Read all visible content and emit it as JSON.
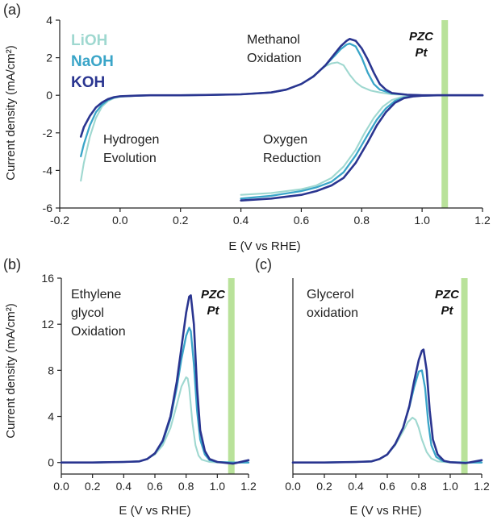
{
  "colors": {
    "LiOH": "#9fd8d0",
    "NaOH": "#3aa5c8",
    "KOH": "#2a3590",
    "pzc": "#b9e29a",
    "axis": "#222222"
  },
  "chart_data": [
    {
      "type": "line",
      "panel_label": "(a)",
      "xlabel": "E (V vs RHE)",
      "ylabel": "Current density (mA/cm²)",
      "xlim": [
        -0.2,
        1.2
      ],
      "ylim": [
        -6,
        4
      ],
      "xticks": [
        -0.2,
        0.0,
        0.2,
        0.4,
        0.6,
        0.8,
        1.0,
        1.2
      ],
      "xtick_labels": [
        "-0.2",
        "0.0",
        "0.2",
        "0.4",
        "0.6",
        "0.8",
        "1.0",
        "1.2"
      ],
      "yticks": [
        -6,
        -4,
        -2,
        0,
        2,
        4
      ],
      "ytick_labels": [
        "-6",
        "-4",
        "-2",
        "0",
        "2",
        "4"
      ],
      "grid": false,
      "legend_placement": "top-left",
      "legend": [
        "LiOH",
        "NaOH",
        "KOH"
      ],
      "annotations": [
        {
          "text": "Methanol",
          "x": 0.52,
          "y": 2.7
        },
        {
          "text": "Oxidation",
          "x": 0.52,
          "y": 1.85
        },
        {
          "text": "Hydrogen",
          "x": -0.08,
          "y": -2.25
        },
        {
          "text": "Evolution",
          "x": -0.08,
          "y": -3.1
        },
        {
          "text": "Oxygen",
          "x": 0.5,
          "y": -2.25
        },
        {
          "text": "Reduction",
          "x": 0.5,
          "y": -3.1
        }
      ],
      "pzc": {
        "x": 1.075,
        "label_line1": "PZC",
        "label_line2": "Pt"
      },
      "series": [
        {
          "name": "LiOH",
          "segments": [
            {
              "x": [
                -0.13,
                -0.12,
                -0.1,
                -0.08,
                -0.06,
                -0.04,
                -0.02,
                0.0,
                0.05,
                0.1,
                0.2,
                0.3,
                0.4,
                0.5,
                0.55,
                0.6,
                0.63,
                0.66,
                0.68,
                0.7,
                0.72,
                0.74,
                0.76,
                0.78,
                0.8,
                0.83,
                0.86,
                0.9,
                0.95,
                1.0,
                1.1,
                1.2
              ],
              "y": [
                -4.55,
                -3.6,
                -2.2,
                -1.2,
                -0.6,
                -0.3,
                -0.15,
                -0.08,
                -0.03,
                0,
                0,
                0.02,
                0.05,
                0.15,
                0.3,
                0.6,
                0.9,
                1.3,
                1.55,
                1.7,
                1.75,
                1.6,
                1.1,
                0.7,
                0.45,
                0.25,
                0.15,
                0.05,
                0.02,
                0,
                0,
                0
              ]
            },
            {
              "x": [
                0.4,
                0.5,
                0.6,
                0.65,
                0.7,
                0.74,
                0.78,
                0.81,
                0.84,
                0.87,
                0.9,
                0.93,
                0.96,
                1.0,
                1.05,
                1.1,
                1.2
              ],
              "y": [
                -5.3,
                -5.2,
                -5.0,
                -4.8,
                -4.4,
                -3.8,
                -2.9,
                -2.0,
                -1.2,
                -0.6,
                -0.25,
                -0.1,
                -0.04,
                -0.01,
                0,
                0,
                0
              ]
            }
          ]
        },
        {
          "name": "NaOH",
          "segments": [
            {
              "x": [
                -0.13,
                -0.12,
                -0.1,
                -0.08,
                -0.06,
                -0.04,
                -0.02,
                0.0,
                0.05,
                0.1,
                0.2,
                0.3,
                0.4,
                0.5,
                0.55,
                0.6,
                0.64,
                0.68,
                0.71,
                0.73,
                0.75,
                0.76,
                0.78,
                0.8,
                0.82,
                0.84,
                0.86,
                0.9,
                0.95,
                1.0,
                1.1,
                1.2
              ],
              "y": [
                -3.25,
                -2.6,
                -1.6,
                -0.9,
                -0.5,
                -0.25,
                -0.12,
                -0.06,
                -0.02,
                0,
                0,
                0.02,
                0.05,
                0.15,
                0.3,
                0.6,
                1.0,
                1.6,
                2.1,
                2.45,
                2.7,
                2.75,
                2.6,
                2.0,
                1.2,
                0.6,
                0.3,
                0.1,
                0.03,
                0,
                0,
                0
              ]
            },
            {
              "x": [
                0.4,
                0.5,
                0.6,
                0.65,
                0.7,
                0.74,
                0.78,
                0.82,
                0.85,
                0.88,
                0.91,
                0.94,
                0.97,
                1.0,
                1.05,
                1.1,
                1.2
              ],
              "y": [
                -5.5,
                -5.35,
                -5.1,
                -4.9,
                -4.6,
                -4.1,
                -3.2,
                -2.1,
                -1.3,
                -0.7,
                -0.3,
                -0.12,
                -0.05,
                -0.02,
                0,
                0,
                0
              ]
            }
          ]
        },
        {
          "name": "KOH",
          "segments": [
            {
              "x": [
                -0.13,
                -0.12,
                -0.1,
                -0.08,
                -0.06,
                -0.04,
                -0.02,
                0.0,
                0.05,
                0.1,
                0.2,
                0.3,
                0.4,
                0.5,
                0.55,
                0.6,
                0.64,
                0.68,
                0.71,
                0.73,
                0.75,
                0.76,
                0.78,
                0.8,
                0.82,
                0.84,
                0.86,
                0.88,
                0.9,
                0.95,
                1.0,
                1.1,
                1.2
              ],
              "y": [
                -2.2,
                -1.7,
                -1.1,
                -0.65,
                -0.38,
                -0.2,
                -0.1,
                -0.05,
                -0.02,
                0,
                0,
                0.02,
                0.05,
                0.15,
                0.3,
                0.6,
                1.0,
                1.6,
                2.2,
                2.6,
                2.9,
                3.0,
                2.9,
                2.5,
                1.9,
                1.2,
                0.6,
                0.3,
                0.12,
                0.03,
                0,
                0,
                0
              ]
            },
            {
              "x": [
                0.4,
                0.5,
                0.6,
                0.65,
                0.7,
                0.74,
                0.78,
                0.82,
                0.85,
                0.88,
                0.91,
                0.94,
                0.97,
                1.0,
                1.05,
                1.1,
                1.2
              ],
              "y": [
                -5.6,
                -5.5,
                -5.3,
                -5.1,
                -4.8,
                -4.4,
                -3.6,
                -2.5,
                -1.6,
                -0.9,
                -0.4,
                -0.15,
                -0.06,
                -0.02,
                0,
                0,
                0
              ]
            }
          ]
        }
      ]
    },
    {
      "type": "line",
      "panel_label": "(b)",
      "xlabel": "E (V vs RHE)",
      "ylabel": "Current density (mA/cm²)",
      "xlim": [
        0.0,
        1.2
      ],
      "ylim": [
        -1,
        16
      ],
      "xticks": [
        0.0,
        0.2,
        0.4,
        0.6,
        0.8,
        1.0,
        1.2
      ],
      "xtick_labels": [
        "0.0",
        "0.2",
        "0.4",
        "0.6",
        "0.8",
        "1.0",
        "1.2"
      ],
      "yticks": [
        0,
        4,
        8,
        12,
        16
      ],
      "ytick_labels": [
        "0",
        "4",
        "8",
        "12",
        "16"
      ],
      "grid": false,
      "annotations": [
        {
          "text": "Ethylene",
          "x": 0.03,
          "y": 14.2
        },
        {
          "text": "glycol",
          "x": 0.03,
          "y": 12.2
        },
        {
          "text": "Oxidation",
          "x": 0.03,
          "y": 10.2
        }
      ],
      "pzc": {
        "x": 1.09,
        "label_line1": "PZC",
        "label_line2": "Pt"
      },
      "series": [
        {
          "name": "LiOH",
          "segments": [
            {
              "x": [
                0.0,
                0.2,
                0.4,
                0.5,
                0.55,
                0.6,
                0.65,
                0.7,
                0.74,
                0.77,
                0.8,
                0.81,
                0.82,
                0.84,
                0.86,
                0.88,
                0.9,
                0.95,
                1.0,
                1.1,
                1.2
              ],
              "y": [
                0,
                0,
                0.05,
                0.1,
                0.3,
                0.7,
                1.5,
                3.0,
                5.0,
                6.6,
                7.4,
                7.3,
                6.5,
                3.5,
                1.5,
                0.6,
                0.25,
                0.05,
                0,
                0,
                0
              ]
            }
          ]
        },
        {
          "name": "NaOH",
          "segments": [
            {
              "x": [
                0.0,
                0.2,
                0.4,
                0.5,
                0.55,
                0.6,
                0.65,
                0.7,
                0.74,
                0.77,
                0.8,
                0.82,
                0.83,
                0.85,
                0.87,
                0.89,
                0.92,
                0.95,
                1.0,
                1.1,
                1.2
              ],
              "y": [
                0,
                0,
                0.05,
                0.1,
                0.3,
                0.8,
                1.8,
                3.8,
                6.5,
                9.0,
                11.0,
                11.7,
                11.4,
                8.5,
                4.5,
                2.0,
                0.7,
                0.2,
                0.05,
                0,
                0
              ]
            }
          ]
        },
        {
          "name": "KOH",
          "segments": [
            {
              "x": [
                0.0,
                0.2,
                0.4,
                0.5,
                0.55,
                0.6,
                0.65,
                0.7,
                0.74,
                0.77,
                0.8,
                0.82,
                0.83,
                0.85,
                0.87,
                0.89,
                0.92,
                0.95,
                1.0,
                1.1,
                1.2
              ],
              "y": [
                0,
                0,
                0.05,
                0.1,
                0.3,
                0.8,
                1.9,
                4.0,
                7.0,
                10.0,
                13.0,
                14.4,
                14.5,
                12.0,
                6.5,
                2.8,
                1.0,
                0.3,
                0.05,
                -0.1,
                0.2
              ]
            }
          ]
        }
      ]
    },
    {
      "type": "line",
      "panel_label": "(c)",
      "xlabel": "E (V vs RHE)",
      "xlim": [
        0.0,
        1.2
      ],
      "ylim": [
        -1,
        16
      ],
      "xticks": [
        0.0,
        0.2,
        0.4,
        0.6,
        0.8,
        1.0,
        1.2
      ],
      "xtick_labels": [
        "0.0",
        "0.2",
        "0.4",
        "0.6",
        "0.8",
        "1.0",
        "1.2"
      ],
      "grid": false,
      "annotations": [
        {
          "text": "Glycerol",
          "x": 0.03,
          "y": 14.2
        },
        {
          "text": "oxidation",
          "x": 0.03,
          "y": 12.2
        }
      ],
      "pzc": {
        "x": 1.09,
        "label_line1": "PZC",
        "label_line2": "Pt"
      },
      "series": [
        {
          "name": "LiOH",
          "segments": [
            {
              "x": [
                0.0,
                0.2,
                0.4,
                0.5,
                0.55,
                0.6,
                0.65,
                0.7,
                0.73,
                0.76,
                0.78,
                0.8,
                0.82,
                0.85,
                0.88,
                0.92,
                1.0,
                1.1,
                1.2
              ],
              "y": [
                0,
                0,
                0.05,
                0.1,
                0.3,
                0.7,
                1.5,
                2.7,
                3.5,
                3.9,
                3.7,
                3.0,
                2.0,
                0.9,
                0.35,
                0.1,
                0,
                0,
                0
              ]
            }
          ]
        },
        {
          "name": "NaOH",
          "segments": [
            {
              "x": [
                0.0,
                0.2,
                0.4,
                0.5,
                0.55,
                0.6,
                0.65,
                0.7,
                0.74,
                0.77,
                0.8,
                0.82,
                0.84,
                0.86,
                0.88,
                0.91,
                0.95,
                1.0,
                1.1,
                1.2
              ],
              "y": [
                0,
                0,
                0.05,
                0.1,
                0.3,
                0.7,
                1.6,
                3.0,
                4.8,
                6.5,
                7.9,
                8.0,
                6.5,
                3.5,
                1.5,
                0.5,
                0.15,
                0.03,
                0,
                0
              ]
            }
          ]
        },
        {
          "name": "KOH",
          "segments": [
            {
              "x": [
                0.0,
                0.2,
                0.4,
                0.5,
                0.55,
                0.6,
                0.65,
                0.7,
                0.74,
                0.77,
                0.8,
                0.82,
                0.83,
                0.85,
                0.87,
                0.89,
                0.92,
                0.96,
                1.0,
                1.1,
                1.2
              ],
              "y": [
                0,
                0,
                0.05,
                0.1,
                0.3,
                0.7,
                1.6,
                3.0,
                4.9,
                7.0,
                8.9,
                9.7,
                9.8,
                8.0,
                4.5,
                2.0,
                0.7,
                0.15,
                0.03,
                -0.05,
                0.2
              ]
            }
          ]
        }
      ]
    }
  ]
}
